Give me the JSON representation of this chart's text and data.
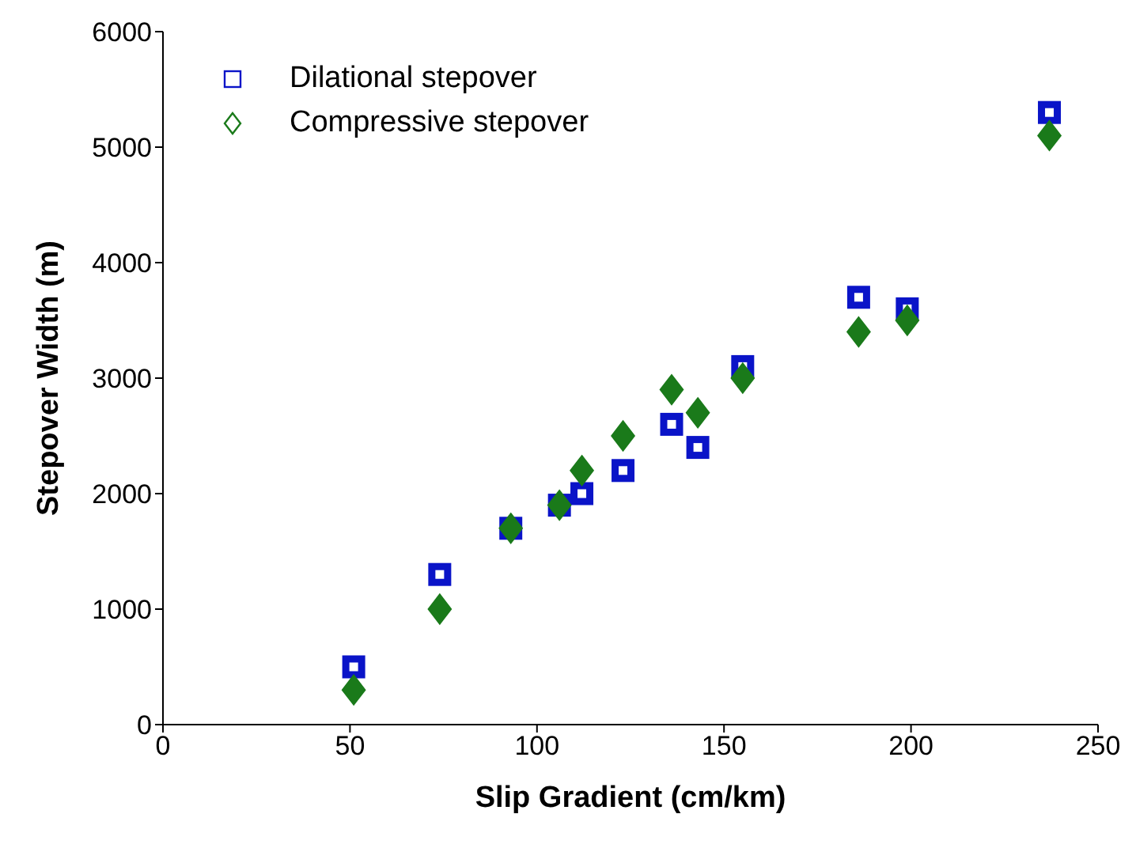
{
  "chart_data": {
    "type": "scatter",
    "xlabel": "Slip Gradient (cm/km)",
    "ylabel": "Stepover Width (m)",
    "xlim": [
      0,
      250
    ],
    "xticks": [
      0,
      50,
      100,
      150,
      200,
      250
    ],
    "ylim": [
      0,
      6000
    ],
    "yticks": [
      0,
      1000,
      2000,
      3000,
      4000,
      5000,
      6000
    ],
    "grid": false,
    "legend": "top left",
    "series": [
      {
        "name": "Dilational stepover",
        "color": "#0a14c8",
        "marker": "square",
        "x": [
          51,
          74,
          93,
          106,
          112,
          123,
          136,
          143,
          155,
          186,
          199,
          237
        ],
        "values": [
          500,
          1300,
          1700,
          1900,
          2000,
          2200,
          2600,
          2400,
          3100,
          3700,
          3600,
          5300
        ]
      },
      {
        "name": "Compressive stepover",
        "color": "#1a7a1a",
        "marker": "diamond",
        "x": [
          51,
          74,
          93,
          106,
          112,
          123,
          136,
          143,
          155,
          186,
          199,
          237
        ],
        "values": [
          300,
          1000,
          1700,
          1900,
          2200,
          2500,
          2900,
          2700,
          3000,
          3400,
          3500,
          5100
        ]
      }
    ]
  }
}
